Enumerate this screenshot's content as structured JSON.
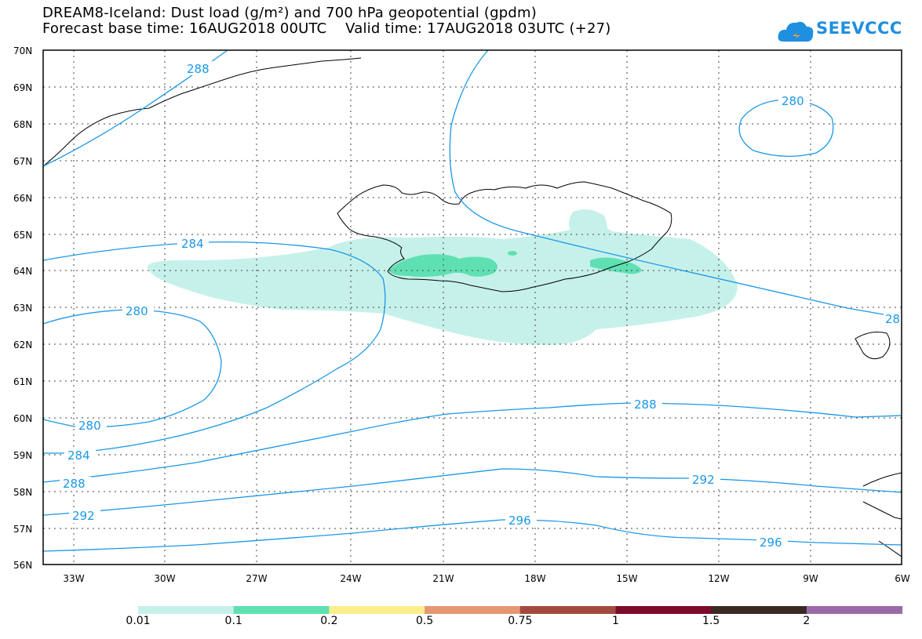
{
  "title": {
    "line1": "DREAM8-Iceland: Dust load (g/m²) and 700 hPa geopotential (gpdm)",
    "line2": "Forecast base time: 16AUG2018 00UTC    Valid time: 17AUG2018 03UTC (+27)"
  },
  "logo": {
    "text": "SEEVCCC",
    "color": "#1f8fe0",
    "icon": "cloud-icon"
  },
  "axes": {
    "lat_labels": [
      "70N",
      "69N",
      "68N",
      "67N",
      "66N",
      "65N",
      "64N",
      "63N",
      "62N",
      "61N",
      "60N",
      "59N",
      "58N",
      "57N",
      "56N"
    ],
    "lon_labels": [
      "33W",
      "30W",
      "27W",
      "24W",
      "21W",
      "18W",
      "15W",
      "12W",
      "9W",
      "6W"
    ]
  },
  "contours": {
    "color": "#1a98e6",
    "labels": [
      "288",
      "284",
      "280",
      "280",
      "280",
      "284",
      "288",
      "288",
      "292",
      "292",
      "296",
      "296",
      "280",
      "28"
    ]
  },
  "dust": {
    "light_color": "#c6f1ea",
    "medium_color": "#5fe0b3"
  },
  "colorbar": {
    "colors": [
      "#c6f1ea",
      "#5fe0b3",
      "#fdee8a",
      "#e69772",
      "#a34a40",
      "#7c0a2b",
      "#3b2a22",
      "#9a6aa8"
    ],
    "labels": [
      "0.01",
      "0.1",
      "0.2",
      "0.5",
      "0.75",
      "1",
      "1.5",
      "2"
    ]
  }
}
